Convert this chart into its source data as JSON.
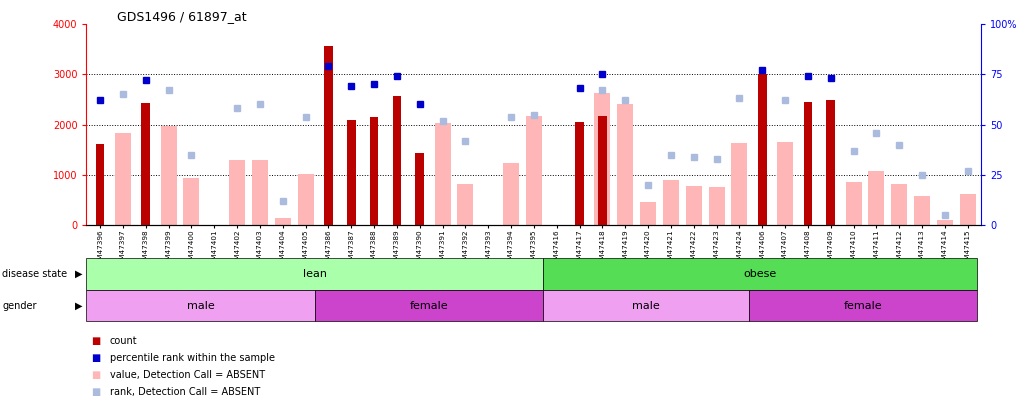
{
  "title": "GDS1496 / 61897_at",
  "samples": [
    "GSM47396",
    "GSM47397",
    "GSM47398",
    "GSM47399",
    "GSM47400",
    "GSM47401",
    "GSM47402",
    "GSM47403",
    "GSM47404",
    "GSM47405",
    "GSM47386",
    "GSM47387",
    "GSM47388",
    "GSM47389",
    "GSM47390",
    "GSM47391",
    "GSM47392",
    "GSM47393",
    "GSM47394",
    "GSM47395",
    "GSM47416",
    "GSM47417",
    "GSM47418",
    "GSM47419",
    "GSM47420",
    "GSM47421",
    "GSM47422",
    "GSM47423",
    "GSM47424",
    "GSM47406",
    "GSM47407",
    "GSM47408",
    "GSM47409",
    "GSM47410",
    "GSM47411",
    "GSM47412",
    "GSM47413",
    "GSM47414",
    "GSM47415"
  ],
  "count_values": [
    1620,
    0,
    2430,
    0,
    0,
    0,
    0,
    0,
    0,
    0,
    3560,
    2100,
    2150,
    2560,
    1430,
    0,
    0,
    0,
    0,
    0,
    0,
    2060,
    2170,
    0,
    0,
    0,
    0,
    0,
    0,
    3010,
    0,
    2440,
    2490,
    0,
    0,
    0,
    0,
    0,
    0
  ],
  "absent_value": [
    0,
    1830,
    0,
    1980,
    940,
    0,
    1290,
    1300,
    130,
    1010,
    0,
    0,
    0,
    0,
    0,
    2040,
    820,
    0,
    1240,
    2170,
    0,
    0,
    2630,
    2410,
    450,
    900,
    780,
    750,
    1640,
    0,
    1660,
    0,
    0,
    850,
    1080,
    810,
    580,
    100,
    620
  ],
  "percentile_rank": [
    62,
    0,
    72,
    0,
    0,
    0,
    0,
    0,
    0,
    0,
    79,
    69,
    70,
    74,
    60,
    0,
    0,
    0,
    0,
    0,
    0,
    68,
    75,
    0,
    0,
    0,
    0,
    0,
    0,
    77,
    0,
    74,
    73,
    0,
    0,
    0,
    0,
    0,
    0
  ],
  "absent_rank": [
    0,
    65,
    0,
    67,
    35,
    0,
    58,
    60,
    12,
    54,
    0,
    0,
    0,
    0,
    0,
    52,
    42,
    0,
    54,
    55,
    0,
    0,
    67,
    62,
    20,
    35,
    34,
    33,
    63,
    0,
    62,
    0,
    0,
    37,
    46,
    40,
    25,
    5,
    27
  ],
  "disease_groups": [
    {
      "label": "lean",
      "start": 0,
      "end": 20,
      "color": "#AAFFAA"
    },
    {
      "label": "obese",
      "start": 20,
      "end": 39,
      "color": "#55DD55"
    }
  ],
  "gender_groups": [
    {
      "label": "male",
      "start": 0,
      "end": 10,
      "color": "#F0A0F0"
    },
    {
      "label": "female",
      "start": 10,
      "end": 20,
      "color": "#CC44CC"
    },
    {
      "label": "male",
      "start": 20,
      "end": 29,
      "color": "#F0A0F0"
    },
    {
      "label": "female",
      "start": 29,
      "end": 39,
      "color": "#CC44CC"
    }
  ],
  "ylim_left": [
    0,
    4000
  ],
  "ylim_right": [
    0,
    100
  ],
  "yticks_left": [
    0,
    1000,
    2000,
    3000,
    4000
  ],
  "yticks_right": [
    0,
    25,
    50,
    75,
    100
  ],
  "bar_color": "#BB0000",
  "absent_bar_color": "#FFB6B6",
  "dot_color": "#0000CC",
  "absent_dot_color": "#AABBDD",
  "background_color": "#ffffff"
}
